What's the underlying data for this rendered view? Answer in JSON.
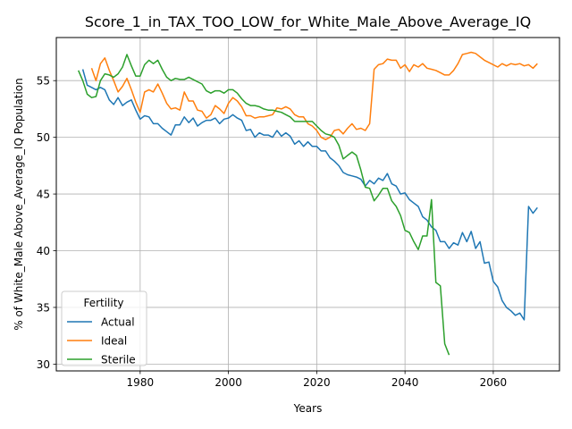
{
  "chart_data": {
    "type": "line",
    "title": "Score_1_in_TAX_TOO_LOW_for_White_Male_Above_Average_IQ",
    "xlabel": "Years",
    "ylabel": "% of White_Male Above_Average_IQ Population",
    "xlim": [
      1961,
      2075
    ],
    "ylim": [
      29.4,
      58.8
    ],
    "xticks": [
      1980,
      2000,
      2020,
      2040,
      2060
    ],
    "yticks": [
      30,
      35,
      40,
      45,
      50,
      55
    ],
    "grid": true,
    "legend": {
      "title": "Fertility",
      "position": "bottom-left"
    },
    "series": [
      {
        "name": "Actual",
        "color": "#1f77b4",
        "x": [
          1967,
          1968,
          1969,
          1970,
          1971,
          1972,
          1973,
          1974,
          1975,
          1976,
          1977,
          1978,
          1979,
          1980,
          1981,
          1982,
          1983,
          1984,
          1985,
          1986,
          1987,
          1988,
          1989,
          1990,
          1991,
          1992,
          1993,
          1994,
          1995,
          1996,
          1997,
          1998,
          1999,
          2000,
          2001,
          2002,
          2003,
          2004,
          2005,
          2006,
          2007,
          2008,
          2009,
          2010,
          2011,
          2012,
          2013,
          2014,
          2015,
          2016,
          2017,
          2018,
          2019,
          2020,
          2021,
          2022,
          2023,
          2024,
          2025,
          2026,
          2027,
          2028,
          2029,
          2030,
          2031,
          2032,
          2033,
          2034,
          2035,
          2036,
          2037,
          2038,
          2039,
          2040,
          2041,
          2042,
          2043,
          2044,
          2045,
          2046,
          2047,
          2048,
          2049,
          2050,
          2051,
          2052,
          2053,
          2054,
          2055,
          2056,
          2057,
          2058,
          2059,
          2060,
          2061,
          2062,
          2063,
          2064,
          2065,
          2066,
          2067,
          2068,
          2069,
          2070
        ],
        "y": [
          56.0,
          54.6,
          54.4,
          54.2,
          54.4,
          54.2,
          53.3,
          52.9,
          53.5,
          52.8,
          53.1,
          53.3,
          52.4,
          51.6,
          51.9,
          51.8,
          51.2,
          51.2,
          50.8,
          50.5,
          50.2,
          51.1,
          51.1,
          51.8,
          51.3,
          51.7,
          51.0,
          51.3,
          51.5,
          51.5,
          51.7,
          51.2,
          51.6,
          51.7,
          52.0,
          51.7,
          51.5,
          50.6,
          50.7,
          50.0,
          50.4,
          50.2,
          50.2,
          50.0,
          50.6,
          50.1,
          50.4,
          50.1,
          49.4,
          49.7,
          49.2,
          49.6,
          49.2,
          49.2,
          48.8,
          48.8,
          48.2,
          47.9,
          47.5,
          46.9,
          46.7,
          46.6,
          46.5,
          46.3,
          45.7,
          46.2,
          45.9,
          46.4,
          46.2,
          46.8,
          45.9,
          45.7,
          45.0,
          45.1,
          44.5,
          44.2,
          43.9,
          43.0,
          42.7,
          42.1,
          41.8,
          40.8,
          40.8,
          40.2,
          40.7,
          40.5,
          41.6,
          40.8,
          41.7,
          40.2,
          40.8,
          38.9,
          39.0,
          37.3,
          36.8,
          35.6,
          35.0,
          34.7,
          34.3,
          34.5,
          33.9,
          43.9,
          43.3,
          43.8
        ]
      },
      {
        "name": "Ideal",
        "color": "#ff7f0e",
        "x": [
          1969,
          1970,
          1971,
          1972,
          1973,
          1974,
          1975,
          1976,
          1977,
          1978,
          1979,
          1980,
          1981,
          1982,
          1983,
          1984,
          1985,
          1986,
          1987,
          1988,
          1989,
          1990,
          1991,
          1992,
          1993,
          1994,
          1995,
          1996,
          1997,
          1998,
          1999,
          2000,
          2001,
          2002,
          2003,
          2004,
          2005,
          2006,
          2007,
          2008,
          2009,
          2010,
          2011,
          2012,
          2013,
          2014,
          2015,
          2016,
          2017,
          2018,
          2019,
          2020,
          2021,
          2022,
          2023,
          2024,
          2025,
          2026,
          2027,
          2028,
          2029,
          2030,
          2031,
          2032,
          2033,
          2034,
          2035,
          2036,
          2037,
          2038,
          2039,
          2040,
          2041,
          2042,
          2043,
          2044,
          2045,
          2046,
          2047,
          2048,
          2049,
          2050,
          2051,
          2052,
          2053,
          2054,
          2055,
          2056,
          2057,
          2058,
          2059,
          2060,
          2061,
          2062,
          2063,
          2064,
          2065,
          2066,
          2067,
          2068,
          2069,
          2070
        ],
        "y": [
          56.1,
          55.0,
          56.5,
          57.0,
          55.9,
          55.0,
          54.0,
          54.5,
          55.2,
          54.2,
          53.1,
          52.2,
          54.0,
          54.2,
          54.0,
          54.7,
          53.9,
          53.0,
          52.5,
          52.6,
          52.4,
          54.0,
          53.2,
          53.2,
          52.4,
          52.3,
          51.7,
          52.0,
          52.8,
          52.5,
          52.1,
          53.0,
          53.5,
          53.2,
          52.7,
          51.9,
          51.9,
          51.7,
          51.8,
          51.8,
          51.9,
          52.0,
          52.6,
          52.5,
          52.7,
          52.5,
          52.0,
          51.8,
          51.8,
          51.2,
          51.0,
          50.6,
          50.0,
          49.8,
          50.0,
          50.6,
          50.7,
          50.3,
          50.8,
          51.2,
          50.7,
          50.8,
          50.6,
          51.2,
          56.0,
          56.4,
          56.5,
          56.9,
          56.8,
          56.8,
          56.1,
          56.4,
          55.8,
          56.4,
          56.2,
          56.5,
          56.1,
          56.0,
          55.9,
          55.7,
          55.5,
          55.5,
          55.9,
          56.5,
          57.3,
          57.4,
          57.5,
          57.4,
          57.1,
          56.8,
          56.6,
          56.4,
          56.2,
          56.5,
          56.3,
          56.5,
          56.4,
          56.5,
          56.3,
          56.4,
          56.1,
          56.5
        ]
      },
      {
        "name": "Sterile",
        "color": "#2ca02c",
        "x": [
          1966,
          1967,
          1968,
          1969,
          1970,
          1971,
          1972,
          1973,
          1974,
          1975,
          1976,
          1977,
          1978,
          1979,
          1980,
          1981,
          1982,
          1983,
          1984,
          1985,
          1986,
          1987,
          1988,
          1989,
          1990,
          1991,
          1992,
          1993,
          1994,
          1995,
          1996,
          1997,
          1998,
          1999,
          2000,
          2001,
          2002,
          2003,
          2004,
          2005,
          2006,
          2007,
          2008,
          2009,
          2010,
          2011,
          2012,
          2013,
          2014,
          2015,
          2016,
          2017,
          2018,
          2019,
          2020,
          2021,
          2022,
          2023,
          2024,
          2025,
          2026,
          2027,
          2028,
          2029,
          2030,
          2031,
          2032,
          2033,
          2034,
          2035,
          2036,
          2037,
          2038,
          2039,
          2040,
          2041,
          2042,
          2043,
          2044,
          2045,
          2046,
          2047,
          2048,
          2049,
          2050
        ],
        "y": [
          55.9,
          55.0,
          53.8,
          53.5,
          53.6,
          55.0,
          55.6,
          55.5,
          55.3,
          55.6,
          56.2,
          57.3,
          56.3,
          55.4,
          55.4,
          56.4,
          56.8,
          56.5,
          56.8,
          56.0,
          55.3,
          55.0,
          55.2,
          55.1,
          55.1,
          55.3,
          55.1,
          54.9,
          54.7,
          54.1,
          53.9,
          54.1,
          54.1,
          53.9,
          54.2,
          54.2,
          53.9,
          53.4,
          53.0,
          52.8,
          52.8,
          52.7,
          52.5,
          52.4,
          52.4,
          52.3,
          52.2,
          52.0,
          51.8,
          51.4,
          51.4,
          51.4,
          51.4,
          51.4,
          51.0,
          50.6,
          50.3,
          50.2,
          50.0,
          49.3,
          48.1,
          48.4,
          48.7,
          48.4,
          47.1,
          45.6,
          45.5,
          44.4,
          44.9,
          45.5,
          45.5,
          44.4,
          43.9,
          43.1,
          41.8,
          41.6,
          40.8,
          40.1,
          41.3,
          41.3,
          44.5,
          37.2,
          36.9,
          31.8,
          30.8
        ]
      }
    ]
  }
}
